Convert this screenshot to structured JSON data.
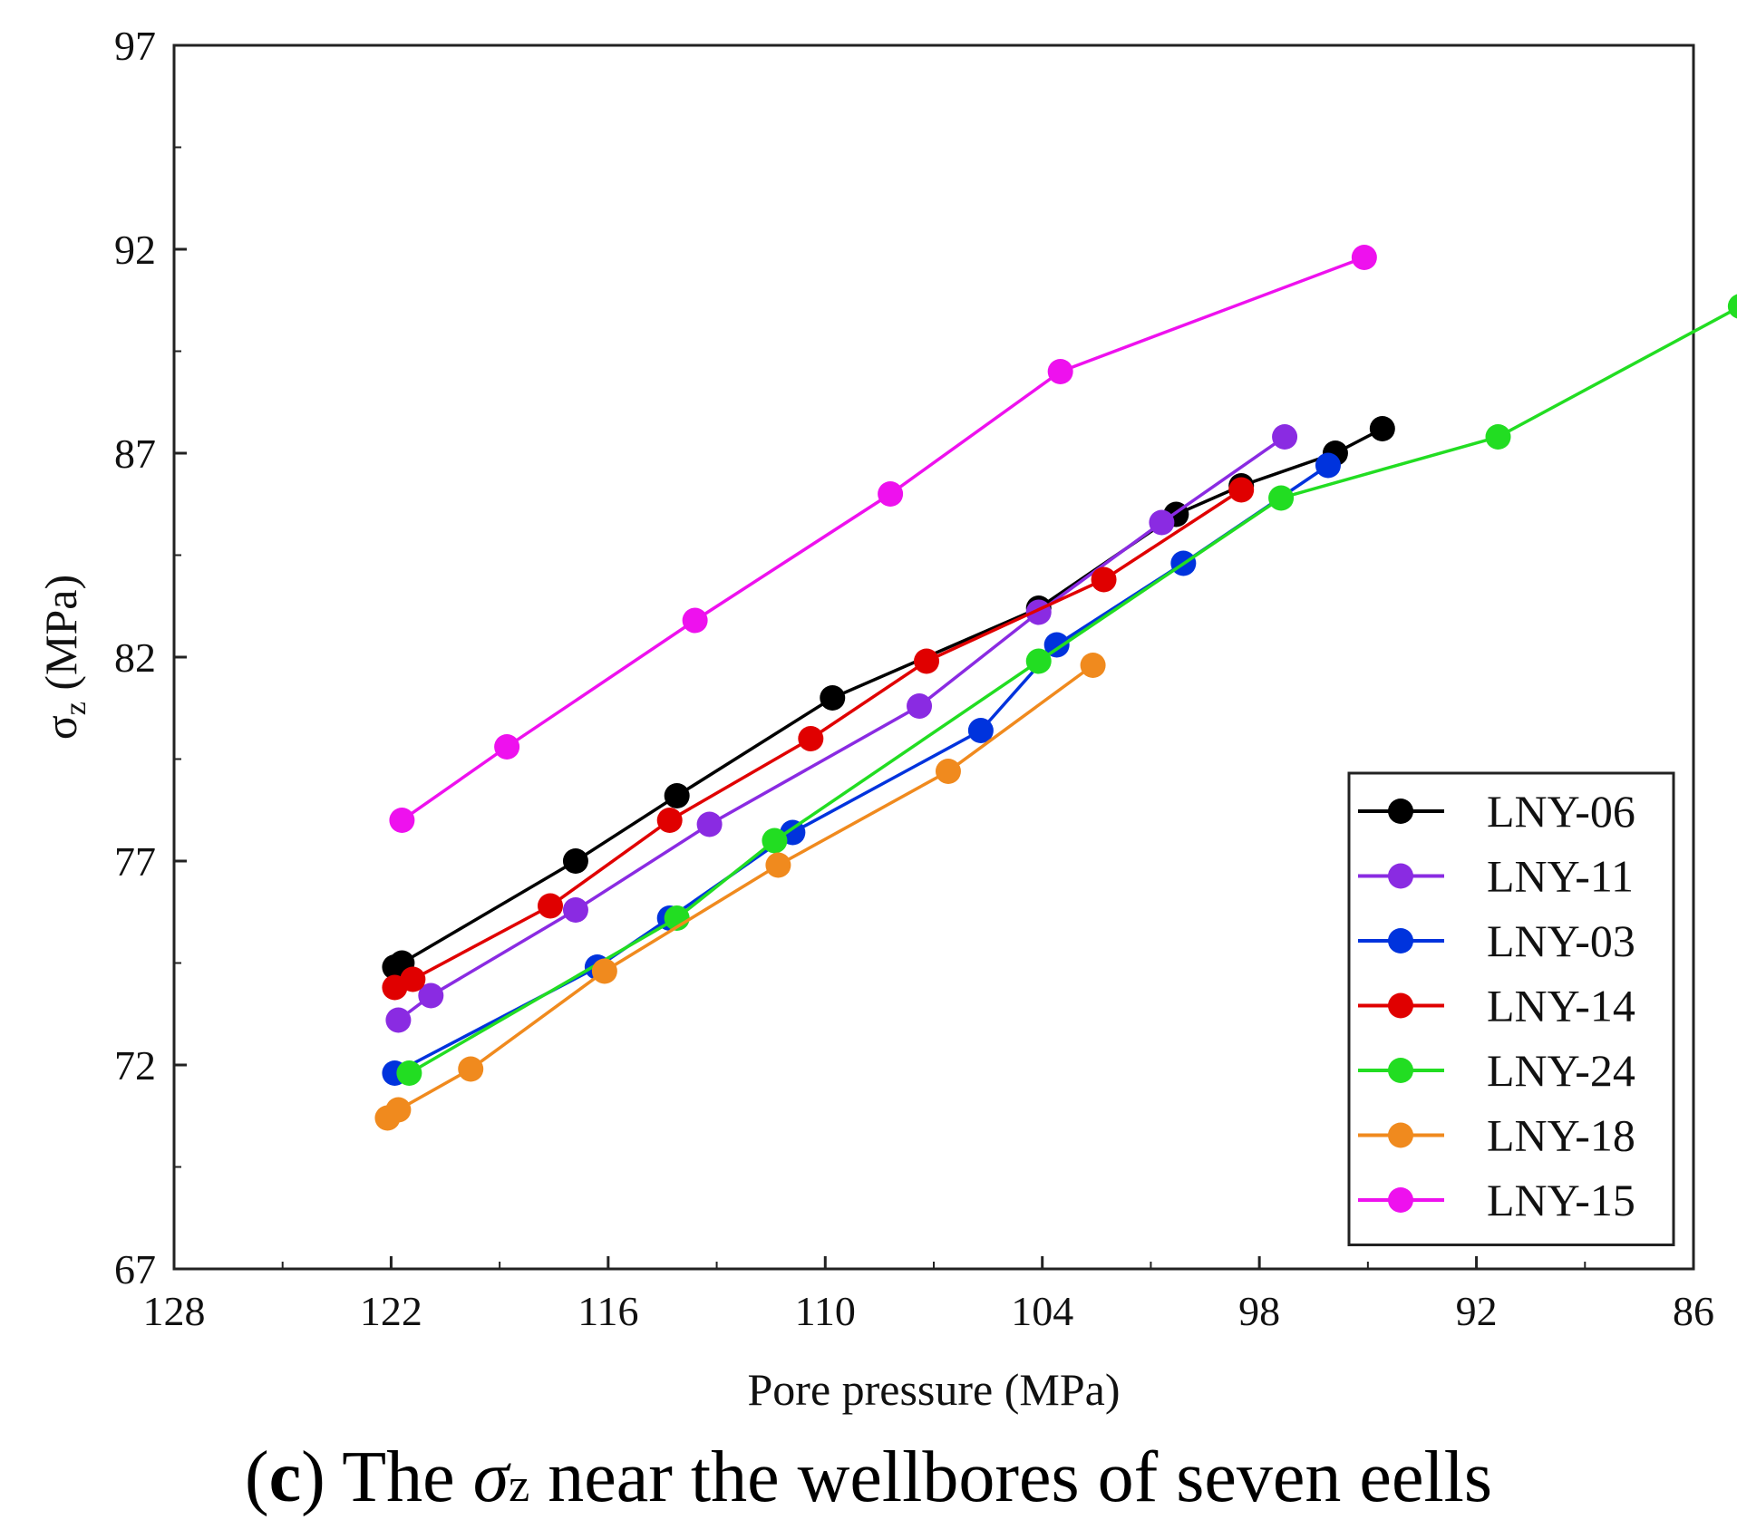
{
  "chart_data": {
    "type": "line",
    "title": "",
    "xlabel": "Pore pressure (MPa)",
    "ylabel_symbol": "σ",
    "ylabel_sub": "z",
    "ylabel_unit": " (MPa)",
    "xlim": [
      128,
      86
    ],
    "ylim": [
      67,
      97
    ],
    "xticks": [
      128,
      122,
      116,
      110,
      104,
      98,
      92,
      86
    ],
    "yticks": [
      67,
      72,
      77,
      82,
      87,
      92,
      97
    ],
    "legend_position": "bottom-right",
    "series": [
      {
        "name": "LNY-06",
        "color": "#000000",
        "x": [
          121.9,
          121.7,
          116.9,
          114.1,
          109.8,
          104.1,
          100.3,
          98.5,
          95.9,
          94.6
        ],
        "y": [
          74.4,
          74.5,
          77.0,
          78.6,
          81.0,
          83.2,
          85.5,
          86.2,
          87.0,
          87.6
        ]
      },
      {
        "name": "LNY-11",
        "color": "#8a2be2",
        "x": [
          121.8,
          120.9,
          116.9,
          113.2,
          107.4,
          104.1,
          100.7,
          97.3
        ],
        "y": [
          73.1,
          73.7,
          75.8,
          77.9,
          80.8,
          83.1,
          85.3,
          87.4
        ]
      },
      {
        "name": "LNY-03",
        "color": "#0033dd",
        "x": [
          121.9,
          116.3,
          114.3,
          110.9,
          105.7,
          103.6,
          100.1,
          96.1
        ],
        "y": [
          71.8,
          74.4,
          75.6,
          77.7,
          80.2,
          82.3,
          84.3,
          86.7
        ]
      },
      {
        "name": "LNY-14",
        "color": "#e00000",
        "x": [
          121.9,
          121.4,
          117.6,
          114.3,
          110.4,
          107.2,
          102.3,
          98.5
        ],
        "y": [
          73.9,
          74.1,
          75.9,
          78.0,
          80.0,
          81.9,
          83.9,
          86.1
        ]
      },
      {
        "name": "LNY-24",
        "color": "#22dd22",
        "x": [
          121.5,
          114.1,
          111.4,
          104.1,
          97.4,
          91.4,
          84.7
        ],
        "y": [
          71.8,
          75.6,
          77.5,
          81.9,
          85.9,
          87.4,
          90.6
        ]
      },
      {
        "name": "LNY-18",
        "color": "#f08a1e",
        "x": [
          122.1,
          121.8,
          119.8,
          116.1,
          111.3,
          106.6,
          102.6
        ],
        "y": [
          70.7,
          70.9,
          71.9,
          74.3,
          76.9,
          79.2,
          81.8
        ]
      },
      {
        "name": "LNY-15",
        "color": "#ee11ee",
        "x": [
          121.7,
          118.8,
          113.6,
          108.2,
          103.5,
          95.1
        ],
        "y": [
          78.0,
          79.8,
          82.9,
          86.0,
          89.0,
          91.8
        ]
      }
    ]
  },
  "caption": {
    "paren_open": "(",
    "letter": "c",
    "paren_close": ")",
    "text1": " The ",
    "symbol": "σ",
    "sub": "z",
    "text2": " near the wellbores of seven eells"
  }
}
